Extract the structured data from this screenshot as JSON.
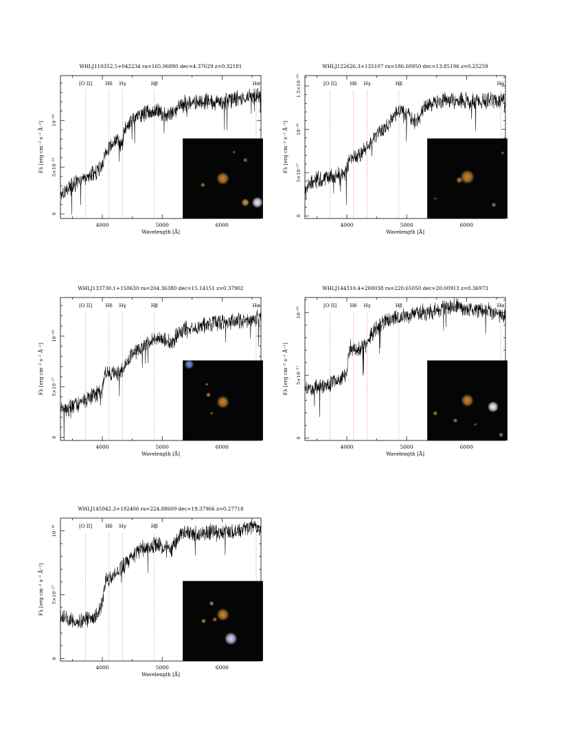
{
  "chart_data": [
    {
      "type": "line",
      "title": "WHLJ110352.5+042234 ra=165.96880 dec=4.37629 z=0.32181",
      "xlabel": "Wavelength [Å]",
      "ylabel": "Fλ [erg cm⁻² s⁻¹ Å⁻¹]",
      "xlim": [
        3300,
        6650
      ],
      "ylim": [
        -5e-20,
        1.48e-18
      ],
      "x_ticks": [
        {
          "v": 4000,
          "label": "4000"
        },
        {
          "v": 5000,
          "label": "5000"
        },
        {
          "v": 6000,
          "label": "6000"
        }
      ],
      "y_ticks": [
        {
          "v": 0,
          "label": "0"
        },
        {
          "v": 5e-19,
          "label": "5×10⁻¹⁹"
        },
        {
          "v": 1e-18,
          "label": "10⁻¹⁸"
        }
      ],
      "lines": [
        {
          "name": "[O II]",
          "x": 3720
        },
        {
          "name": "Hδ",
          "x": 4110
        },
        {
          "name": "Hγ",
          "x": 4340
        },
        {
          "name": "Hβ",
          "x": 4870
        },
        {
          "name": "Hα",
          "x": 6570
        }
      ],
      "spectrum": {
        "x": [
          3300,
          3500,
          3700,
          3900,
          3990,
          4050,
          4150,
          4250,
          4320,
          4380,
          4500,
          4700,
          4900,
          5050,
          5150,
          5300,
          5500,
          5700,
          6000,
          6200,
          6400,
          6650
        ],
        "y": [
          2.2e-19,
          3e-19,
          3.7e-19,
          4.5e-19,
          5.2e-19,
          6.2e-19,
          7.4e-19,
          8e-19,
          7.2e-19,
          9.2e-19,
          1e-18,
          1.08e-18,
          1.11e-18,
          1.05e-18,
          1.07e-18,
          1.17e-18,
          1.19e-18,
          1.2e-18,
          1.2e-18,
          1.23e-18,
          1.25e-18,
          1.28e-18
        ]
      },
      "inset": {
        "sources": [
          {
            "x": 0.5,
            "y": 0.5,
            "r": 0.08,
            "color": "#c7852e"
          },
          {
            "x": 0.78,
            "y": 0.8,
            "r": 0.05,
            "color": "#c99a48"
          },
          {
            "x": 0.93,
            "y": 0.8,
            "r": 0.07,
            "color": "#f0e8ff"
          },
          {
            "x": 0.78,
            "y": 0.27,
            "r": 0.03,
            "color": "#8a6a40"
          },
          {
            "x": 0.25,
            "y": 0.58,
            "r": 0.03,
            "color": "#a06a30"
          },
          {
            "x": 0.64,
            "y": 0.17,
            "r": 0.02,
            "color": "#7c5c36"
          }
        ]
      }
    },
    {
      "type": "line",
      "title": "WHLJ122626.3+135107 ra=186.60950 dec=13.85196 z=0.25259",
      "xlabel": "Wavelength [Å]",
      "ylabel": "Fλ [erg cm⁻² s⁻¹ Å⁻¹]",
      "xlim": [
        3300,
        6650
      ],
      "ylim": [
        -3e-18,
        1.62e-16
      ],
      "x_ticks": [
        {
          "v": 4000,
          "label": "4000"
        },
        {
          "v": 5000,
          "label": "5000"
        },
        {
          "v": 6000,
          "label": "6000"
        }
      ],
      "y_ticks": [
        {
          "v": 0,
          "label": "0"
        },
        {
          "v": 5e-17,
          "label": "5×10⁻¹⁷"
        },
        {
          "v": 1e-16,
          "label": "10⁻¹⁶"
        },
        {
          "v": 1.5e-16,
          "label": "1.5×10⁻¹⁶"
        }
      ],
      "lines": [
        {
          "name": "[O II]",
          "x": 3720
        },
        {
          "name": "Hδ",
          "x": 4110
        },
        {
          "name": "Hγ",
          "x": 4340
        },
        {
          "name": "Hβ",
          "x": 4870
        },
        {
          "name": "Hα",
          "x": 6570
        }
      ],
      "spectrum": {
        "x": [
          3300,
          3500,
          3700,
          3900,
          3990,
          4050,
          4200,
          4400,
          4600,
          4800,
          4900,
          5050,
          5150,
          5300,
          5500,
          5800,
          6100,
          6400,
          6650
        ],
        "y": [
          3.4e-17,
          4.2e-17,
          4.4e-17,
          4.8e-17,
          5e-17,
          6.7e-17,
          7e-17,
          8.5e-17,
          1e-16,
          1.15e-16,
          1.22e-16,
          1.17e-16,
          1.08e-16,
          1.25e-16,
          1.32e-16,
          1.34e-16,
          1.32e-16,
          1.33e-16,
          1.34e-16
        ]
      },
      "inset": {
        "sources": [
          {
            "x": 0.5,
            "y": 0.48,
            "r": 0.09,
            "color": "#c7852e"
          },
          {
            "x": 0.4,
            "y": 0.52,
            "r": 0.04,
            "color": "#b07a38"
          },
          {
            "x": 0.83,
            "y": 0.83,
            "r": 0.03,
            "color": "#8a7a6a"
          },
          {
            "x": 0.94,
            "y": 0.18,
            "r": 0.02,
            "color": "#7a6a5a"
          },
          {
            "x": 0.1,
            "y": 0.75,
            "r": 0.02,
            "color": "#5a4a40"
          }
        ]
      }
    },
    {
      "type": "line",
      "title": "WHLJ133730.1+150630 ra=204.36380 dec=15.14151 z=0.37902",
      "xlabel": "Wavelength [Å]",
      "ylabel": "Fλ [erg cm⁻² s⁻¹ Å⁻¹]",
      "xlim": [
        3300,
        6650
      ],
      "ylim": [
        -3e-18,
        1.38e-16
      ],
      "x_ticks": [
        {
          "v": 4000,
          "label": "4000"
        },
        {
          "v": 5000,
          "label": "5000"
        },
        {
          "v": 6000,
          "label": "6000"
        }
      ],
      "y_ticks": [
        {
          "v": 0,
          "label": "0"
        },
        {
          "v": 5e-17,
          "label": "5×10⁻¹⁷"
        },
        {
          "v": 1e-16,
          "label": "10⁻¹⁶"
        }
      ],
      "lines": [
        {
          "name": "[O II]",
          "x": 3720
        },
        {
          "name": "Hδ",
          "x": 4110
        },
        {
          "name": "Hγ",
          "x": 4340
        },
        {
          "name": "Hβ",
          "x": 4870
        },
        {
          "name": "Hα",
          "x": 6570
        }
      ],
      "spectrum": {
        "x": [
          3300,
          3500,
          3700,
          3900,
          3990,
          4050,
          4200,
          4300,
          4400,
          4600,
          4800,
          5000,
          5150,
          5300,
          5600,
          6000,
          6300,
          6650
        ],
        "y": [
          2.8e-17,
          3e-17,
          3.6e-17,
          4.2e-17,
          4.6e-17,
          6.4e-17,
          6.2e-17,
          6.5e-17,
          7.5e-17,
          8.8e-17,
          9.5e-17,
          9.7e-17,
          9.2e-17,
          1.05e-16,
          1.1e-16,
          1.14e-16,
          1.15e-16,
          1.18e-16
        ]
      },
      "inset": {
        "sources": [
          {
            "x": 0.5,
            "y": 0.52,
            "r": 0.08,
            "color": "#c7852e"
          },
          {
            "x": 0.08,
            "y": 0.05,
            "r": 0.06,
            "color": "#7a86e8"
          },
          {
            "x": 0.32,
            "y": 0.43,
            "r": 0.03,
            "color": "#b08040"
          },
          {
            "x": 0.36,
            "y": 0.66,
            "r": 0.02,
            "color": "#8a6a40"
          },
          {
            "x": 0.3,
            "y": 0.3,
            "r": 0.02,
            "color": "#5a8a5a"
          }
        ]
      }
    },
    {
      "type": "line",
      "title": "WHLJ144310.4+200038 ra=220.65050 dec=20.00913 z=0.36973",
      "xlabel": "Wavelength [Å]",
      "ylabel": "Fλ [erg cm⁻² s⁻¹ Å⁻¹]",
      "xlim": [
        3300,
        6650
      ],
      "ylim": [
        -2e-18,
        1.12e-16
      ],
      "x_ticks": [
        {
          "v": 4000,
          "label": "4000"
        },
        {
          "v": 5000,
          "label": "5000"
        },
        {
          "v": 6000,
          "label": "6000"
        }
      ],
      "y_ticks": [
        {
          "v": 0,
          "label": "0"
        },
        {
          "v": 5e-17,
          "label": "5×10⁻¹⁷"
        },
        {
          "v": 1e-16,
          "label": "10⁻¹⁶"
        }
      ],
      "lines": [
        {
          "name": "[O II]",
          "x": 3720
        },
        {
          "name": "Hδ",
          "x": 4110
        },
        {
          "name": "Hγ",
          "x": 4340
        },
        {
          "name": "Hβ",
          "x": 4870
        },
        {
          "name": "Hα",
          "x": 6570
        }
      ],
      "spectrum": {
        "x": [
          3300,
          3500,
          3700,
          3900,
          3990,
          4050,
          4200,
          4300,
          4400,
          4600,
          4800,
          5000,
          5200,
          5500,
          5800,
          6000,
          6300,
          6650
        ],
        "y": [
          3.8e-17,
          4e-17,
          4.3e-17,
          4.7e-17,
          5.2e-17,
          7.2e-17,
          7e-17,
          7.4e-17,
          8.2e-17,
          9.3e-17,
          9.6e-17,
          9.7e-17,
          1e-16,
          1.02e-16,
          1.06e-16,
          1.03e-16,
          1.02e-16,
          9.8e-17
        ]
      },
      "inset": {
        "sources": [
          {
            "x": 0.5,
            "y": 0.5,
            "r": 0.08,
            "color": "#c7852e"
          },
          {
            "x": 0.82,
            "y": 0.58,
            "r": 0.07,
            "color": "#e8f8f0"
          },
          {
            "x": 0.1,
            "y": 0.66,
            "r": 0.03,
            "color": "#a07a3a"
          },
          {
            "x": 0.35,
            "y": 0.75,
            "r": 0.03,
            "color": "#9a7040"
          },
          {
            "x": 0.92,
            "y": 0.93,
            "r": 0.03,
            "color": "#9a7a50"
          },
          {
            "x": 0.6,
            "y": 0.8,
            "r": 0.02,
            "color": "#6a5a40"
          }
        ]
      }
    },
    {
      "type": "line",
      "title": "WHLJ145942.3+192406 ra=224.88609 dec=19.37966 z=0.27718",
      "xlabel": "Wavelength [Å]",
      "ylabel": "Fλ [erg cm⁻² s⁻¹ Å⁻¹]",
      "xlim": [
        3300,
        6650
      ],
      "ylim": [
        -2e-18,
        1.1e-16
      ],
      "x_ticks": [
        {
          "v": 4000,
          "label": "4000"
        },
        {
          "v": 5000,
          "label": "5000"
        },
        {
          "v": 6000,
          "label": "6000"
        }
      ],
      "y_ticks": [
        {
          "v": 0,
          "label": "0"
        },
        {
          "v": 5e-17,
          "label": "5×10⁻¹⁷"
        },
        {
          "v": 1e-16,
          "label": "10⁻¹⁶"
        }
      ],
      "lines": [
        {
          "name": "[O II]",
          "x": 3720
        },
        {
          "name": "Hδ",
          "x": 4110
        },
        {
          "name": "Hγ",
          "x": 4340
        },
        {
          "name": "Hβ",
          "x": 4870
        },
        {
          "name": "Hα",
          "x": 6570
        }
      ],
      "spectrum": {
        "x": [
          3300,
          3500,
          3700,
          3900,
          3990,
          4050,
          4200,
          4400,
          4600,
          4800,
          5000,
          5150,
          5300,
          5600,
          6000,
          6300,
          6500,
          6650
        ],
        "y": [
          3.3e-17,
          3e-17,
          3e-17,
          3.4e-17,
          4.2e-17,
          6e-17,
          6.4e-17,
          7.5e-17,
          8.5e-17,
          8.8e-17,
          8.9e-17,
          8.5e-17,
          9.7e-17,
          9.8e-17,
          9.9e-17,
          1e-16,
          1.03e-16,
          1.02e-16
        ]
      },
      "inset": {
        "sources": [
          {
            "x": 0.5,
            "y": 0.42,
            "r": 0.08,
            "color": "#c7852e"
          },
          {
            "x": 0.6,
            "y": 0.72,
            "r": 0.08,
            "color": "#cfd6ff"
          },
          {
            "x": 0.36,
            "y": 0.28,
            "r": 0.03,
            "color": "#5aa0a0"
          },
          {
            "x": 0.26,
            "y": 0.5,
            "r": 0.03,
            "color": "#b07a38"
          },
          {
            "x": 0.4,
            "y": 0.48,
            "r": 0.03,
            "color": "#a07030"
          }
        ]
      }
    }
  ]
}
